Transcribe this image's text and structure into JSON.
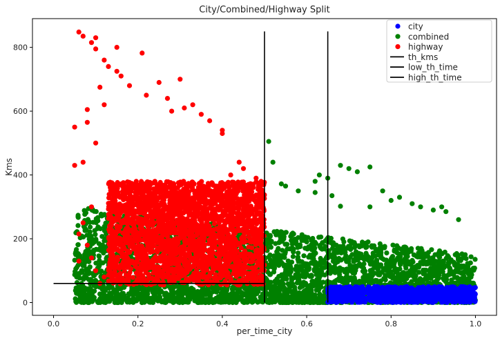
{
  "chart_data": {
    "type": "scatter",
    "title": "City/Combined/Highway Split",
    "xlabel": "per_time_city",
    "ylabel": "Kms",
    "xlim": [
      -0.05,
      1.05
    ],
    "ylim": [
      -40,
      890
    ],
    "xticks": [
      "0.0",
      "0.2",
      "0.4",
      "0.6",
      "0.8",
      "1.0"
    ],
    "yticks": [
      "0",
      "200",
      "400",
      "600",
      "800"
    ],
    "grid": false,
    "legend_position": "top-right",
    "colors": {
      "city": "#0000ff",
      "combined": "#008000",
      "highway": "#ff0000",
      "lines": "#000000"
    },
    "series": [
      {
        "name": "city",
        "kind": "scatter",
        "region": {
          "x": [
            0.65,
            1.0
          ],
          "y": [
            0,
            50
          ]
        },
        "points": [
          [
            0.66,
            45
          ],
          [
            0.7,
            10
          ],
          [
            0.75,
            30
          ],
          [
            0.8,
            5
          ],
          [
            0.85,
            40
          ],
          [
            0.9,
            20
          ],
          [
            0.95,
            48
          ],
          [
            0.98,
            2
          ]
        ]
      },
      {
        "name": "combined",
        "kind": "scatter",
        "region": {
          "x": [
            0.05,
            1.0
          ],
          "y": [
            0,
            300
          ]
        },
        "points": [
          [
            0.51,
            505
          ],
          [
            0.52,
            440
          ],
          [
            0.54,
            372
          ],
          [
            0.55,
            365
          ],
          [
            0.58,
            350
          ],
          [
            0.62,
            380
          ],
          [
            0.62,
            345
          ],
          [
            0.63,
            400
          ],
          [
            0.65,
            390
          ],
          [
            0.66,
            335
          ],
          [
            0.68,
            302
          ],
          [
            0.68,
            430
          ],
          [
            0.7,
            420
          ],
          [
            0.72,
            410
          ],
          [
            0.75,
            425
          ],
          [
            0.75,
            300
          ],
          [
            0.78,
            350
          ],
          [
            0.8,
            320
          ],
          [
            0.82,
            330
          ],
          [
            0.85,
            310
          ],
          [
            0.87,
            300
          ],
          [
            0.9,
            290
          ],
          [
            0.92,
            300
          ],
          [
            0.93,
            285
          ],
          [
            0.96,
            260
          ],
          [
            0.14,
            30
          ],
          [
            0.16,
            25
          ],
          [
            0.2,
            20
          ],
          [
            0.25,
            15
          ],
          [
            0.3,
            18
          ],
          [
            0.12,
            42
          ]
        ]
      },
      {
        "name": "highway",
        "kind": "scatter",
        "region": {
          "x": [
            0.13,
            0.5
          ],
          "y": [
            55,
            380
          ]
        },
        "points": [
          [
            0.06,
            848
          ],
          [
            0.07,
            835
          ],
          [
            0.09,
            815
          ],
          [
            0.1,
            830
          ],
          [
            0.1,
            795
          ],
          [
            0.12,
            760
          ],
          [
            0.13,
            740
          ],
          [
            0.15,
            725
          ],
          [
            0.15,
            800
          ],
          [
            0.16,
            710
          ],
          [
            0.18,
            680
          ],
          [
            0.21,
            782
          ],
          [
            0.22,
            650
          ],
          [
            0.25,
            690
          ],
          [
            0.27,
            640
          ],
          [
            0.28,
            600
          ],
          [
            0.3,
            700
          ],
          [
            0.31,
            610
          ],
          [
            0.33,
            620
          ],
          [
            0.35,
            590
          ],
          [
            0.37,
            570
          ],
          [
            0.4,
            540
          ],
          [
            0.4,
            530
          ],
          [
            0.05,
            550
          ],
          [
            0.05,
            430
          ],
          [
            0.07,
            440
          ],
          [
            0.08,
            565
          ],
          [
            0.08,
            605
          ],
          [
            0.1,
            500
          ],
          [
            0.11,
            675
          ],
          [
            0.12,
            620
          ],
          [
            0.09,
            300
          ],
          [
            0.07,
            250
          ],
          [
            0.06,
            215
          ],
          [
            0.08,
            180
          ],
          [
            0.09,
            140
          ],
          [
            0.06,
            130
          ],
          [
            0.1,
            100
          ],
          [
            0.11,
            60
          ],
          [
            0.12,
            80
          ],
          [
            0.45,
            420
          ],
          [
            0.44,
            440
          ],
          [
            0.47,
            360
          ],
          [
            0.49,
            340
          ],
          [
            0.42,
            400
          ],
          [
            0.48,
            390
          ]
        ]
      },
      {
        "name": "th_kms",
        "kind": "hline",
        "y": 60,
        "x": [
          0.0,
          0.5
        ]
      },
      {
        "name": "low_th_time",
        "kind": "vline",
        "x": 0.5,
        "y": [
          0,
          850
        ]
      },
      {
        "name": "high_th_time",
        "kind": "vline",
        "x": 0.65,
        "y": [
          0,
          850
        ]
      }
    ]
  }
}
